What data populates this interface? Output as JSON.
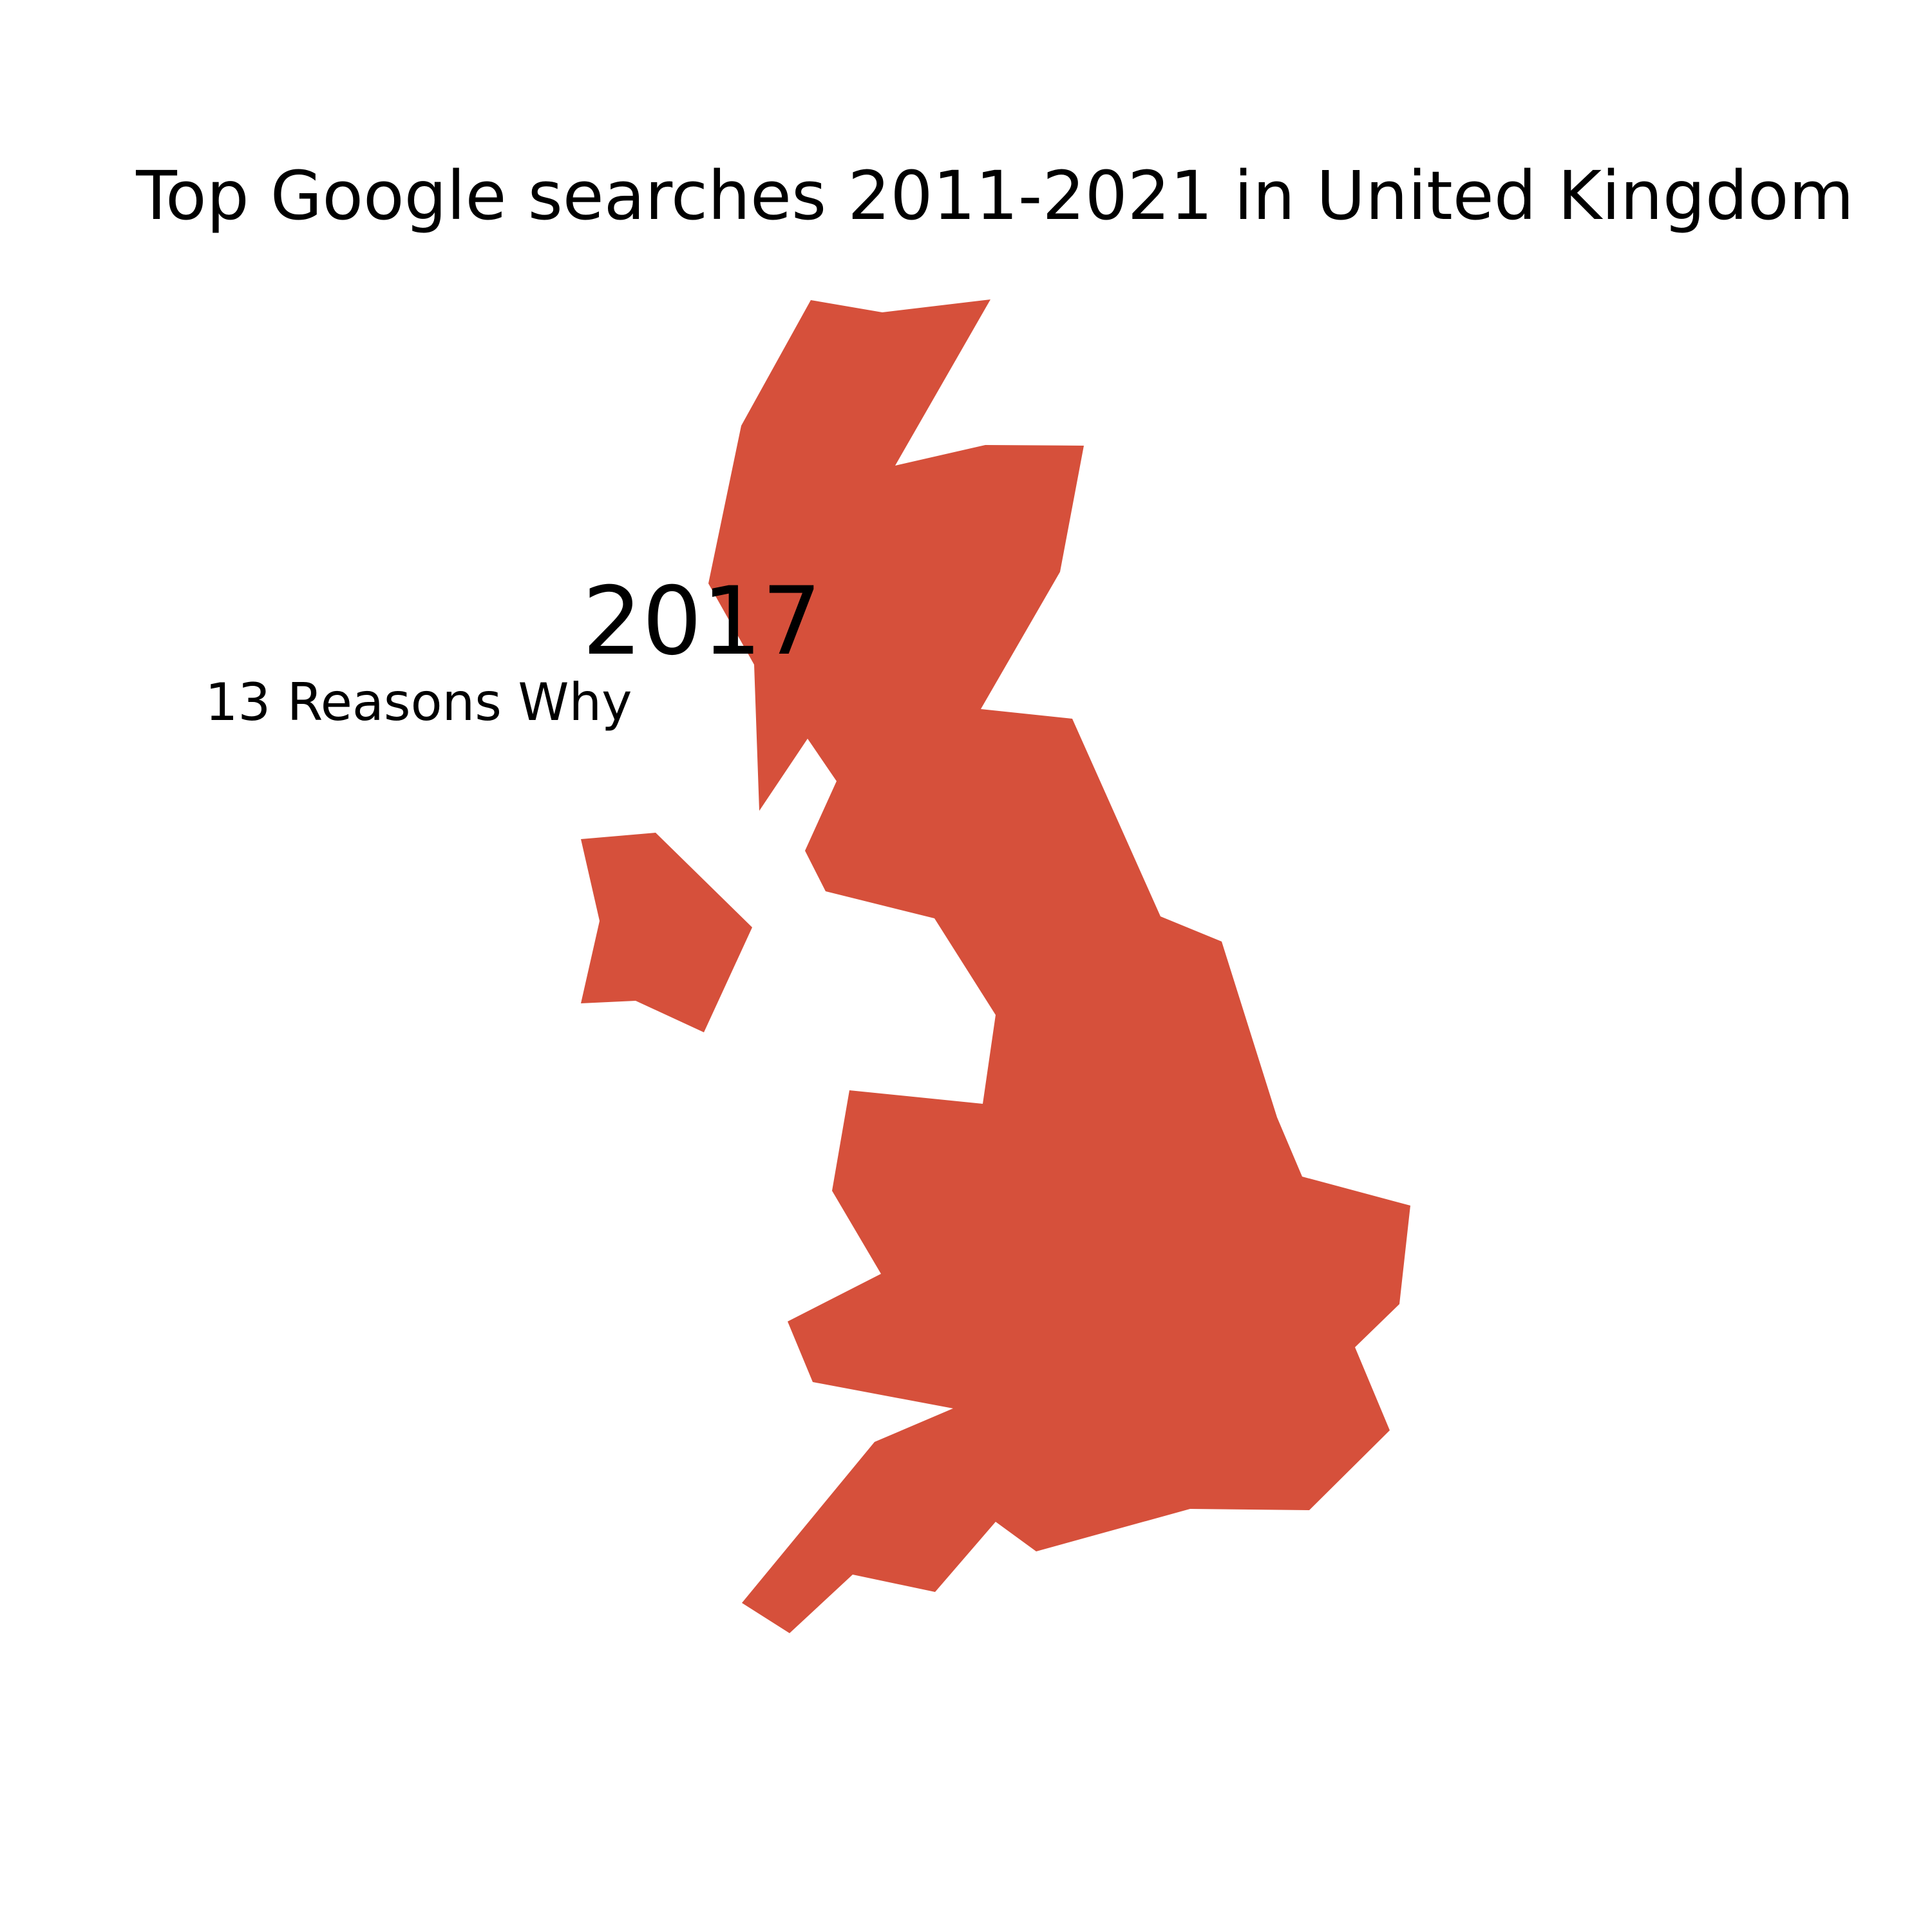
{
  "title": "Top Google searches 2011-2021 in United Kingdom",
  "year": "2017",
  "top_search": "13 Reasons Why",
  "colors": {
    "land": "#d6503b",
    "background": "#ffffff",
    "text": "#000000"
  }
}
